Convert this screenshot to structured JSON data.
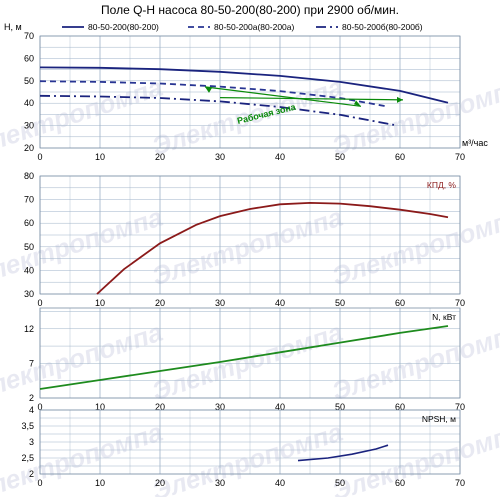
{
  "title": "Поле Q-H насоса 80-50-200(80-200) при 2900 об/мин.",
  "watermark_text": "Электропомпа",
  "colors": {
    "head_200": "#1a237e",
    "head_200a": "#283593",
    "head_200b": "#1a237e",
    "efficiency": "#8b1a1a",
    "power": "#1e8b1e",
    "npsh": "#1a237e",
    "work_zone": "#0a8a0a",
    "grid": "#9fb3c8"
  },
  "chart_data": [
    {
      "type": "line",
      "panel": "Q-H",
      "ylabel": "H, м",
      "xlabel": "м³/час",
      "xlim": [
        0,
        70
      ],
      "ylim": [
        20,
        70
      ],
      "x_ticks": [
        0,
        10,
        20,
        30,
        40,
        50,
        60,
        70
      ],
      "y_ticks": [
        20,
        30,
        40,
        50,
        60,
        70
      ],
      "legend_position": "top",
      "series": [
        {
          "name": "80-50-200(80-200)",
          "style": "solid",
          "x": [
            0,
            10,
            20,
            30,
            40,
            50,
            60,
            68
          ],
          "y": [
            56,
            55.8,
            55.2,
            54,
            52.2,
            49.5,
            45.5,
            40.2
          ]
        },
        {
          "name": "80-50-200а(80-200а)",
          "style": "dashed",
          "x": [
            0,
            10,
            20,
            30,
            40,
            50,
            58
          ],
          "y": [
            49.8,
            49.5,
            48.8,
            47.4,
            45.4,
            42.3,
            38.5
          ]
        },
        {
          "name": "80-50-200б(80-200б)",
          "style": "dashdot",
          "x": [
            0,
            10,
            20,
            30,
            40,
            50,
            59
          ],
          "y": [
            43.3,
            43,
            42.3,
            40.8,
            38.3,
            34.8,
            30.3
          ]
        }
      ],
      "annotation": {
        "text": "Рабочая зона",
        "lines": [
          {
            "x": [
              27.5,
              53.5
            ],
            "y": [
              47.3,
              38.6
            ]
          },
          {
            "x": [
              30,
              60.5
            ],
            "y": [
              42.5,
              41.5
            ]
          }
        ]
      }
    },
    {
      "type": "line",
      "panel": "efficiency",
      "series_label": "КПД, %",
      "xlim": [
        0,
        70
      ],
      "ylim": [
        30,
        80
      ],
      "x_ticks": [
        0,
        10,
        20,
        30,
        40,
        50,
        60,
        70
      ],
      "y_ticks": [
        30,
        40,
        50,
        60,
        70,
        80
      ],
      "series": [
        {
          "name": "КПД, %",
          "x": [
            9.5,
            14,
            20,
            26,
            30,
            35,
            40,
            45,
            50,
            55,
            60,
            65,
            68
          ],
          "y": [
            30,
            40.5,
            51.5,
            59.3,
            63,
            66,
            68,
            68.6,
            68.3,
            67.2,
            65.7,
            63.9,
            62.5
          ]
        }
      ]
    },
    {
      "type": "line",
      "panel": "power",
      "series_label": "N, кВт",
      "xlim": [
        0,
        70
      ],
      "ylim": [
        2,
        15
      ],
      "x_ticks": [
        0,
        10,
        20,
        30,
        40,
        50,
        60,
        70
      ],
      "y_ticks": [
        2,
        7,
        12
      ],
      "series": [
        {
          "name": "N, кВт",
          "x": [
            0,
            10,
            20,
            30,
            40,
            50,
            60,
            68
          ],
          "y": [
            3.3,
            4.6,
            5.9,
            7.2,
            8.6,
            10,
            11.4,
            12.4
          ]
        }
      ]
    },
    {
      "type": "line",
      "panel": "NPSH",
      "series_label": "NPSH, м",
      "xlim": [
        0,
        70
      ],
      "ylim": [
        2,
        4
      ],
      "x_ticks": [
        0,
        10,
        20,
        30,
        40,
        50,
        60,
        70
      ],
      "y_ticks": [
        2,
        2.5,
        3,
        3.5,
        4
      ],
      "y_tick_labels": [
        "2",
        "2,5",
        "3",
        "3,5",
        "4"
      ],
      "series": [
        {
          "name": "NPSH, м",
          "x": [
            43,
            48,
            52,
            56,
            58
          ],
          "y": [
            2.42,
            2.5,
            2.62,
            2.78,
            2.9
          ]
        }
      ]
    }
  ]
}
